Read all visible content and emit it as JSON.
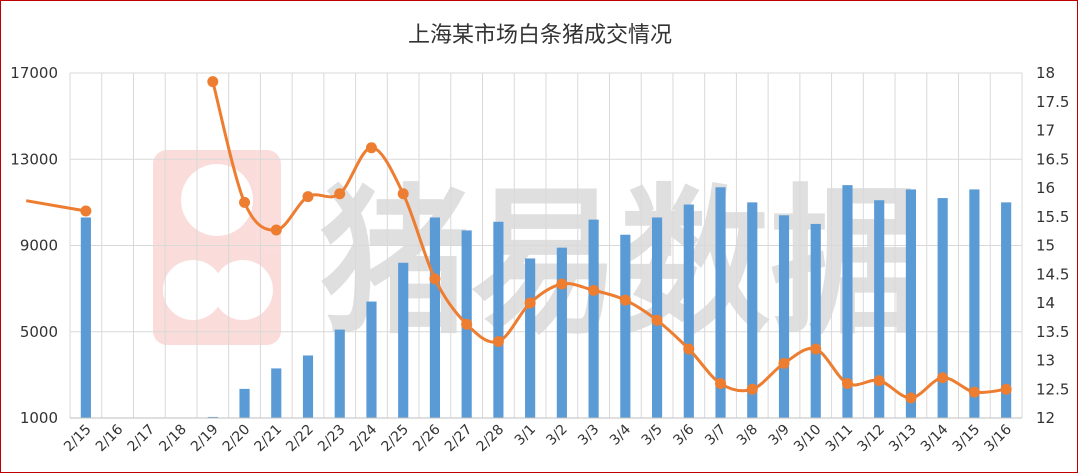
{
  "chart_data": {
    "type": "bar+line",
    "title": "上海某市场白条猪成交情况",
    "watermark": "猪易数据",
    "categories": [
      "2/15",
      "2/16",
      "2/17",
      "2/18",
      "2/19",
      "2/20",
      "2/21",
      "2/22",
      "2/23",
      "2/24",
      "2/25",
      "2/26",
      "2/27",
      "2/28",
      "3/1",
      "3/2",
      "3/3",
      "3/4",
      "3/5",
      "3/6",
      "3/7",
      "3/8",
      "3/9",
      "3/10",
      "3/11",
      "3/12",
      "3/13",
      "3/14",
      "3/15",
      "3/16"
    ],
    "series": [
      {
        "chart_type": "bar",
        "axis": "left",
        "color": "#5b9bd5",
        "values": [
          10300,
          null,
          null,
          null,
          1050,
          2350,
          3300,
          3900,
          5100,
          6400,
          8200,
          10300,
          9700,
          10100,
          8400,
          8900,
          10200,
          9500,
          10300,
          10900,
          11700,
          11000,
          10400,
          10000,
          11800,
          11100,
          11600,
          11200,
          11600,
          11000
        ]
      },
      {
        "chart_type": "line",
        "axis": "right",
        "color": "#ed7d31",
        "values": [
          15.6,
          null,
          null,
          null,
          17.85,
          15.75,
          15.27,
          15.85,
          15.9,
          16.7,
          15.9,
          14.42,
          13.63,
          13.33,
          14.0,
          14.33,
          14.22,
          14.05,
          13.7,
          13.2,
          12.6,
          12.5,
          12.95,
          13.2,
          12.6,
          12.65,
          12.35,
          12.7,
          12.45,
          12.5
        ]
      }
    ],
    "y_left": {
      "min": 1000,
      "max": 17000,
      "ticks": [
        1000,
        5000,
        9000,
        13000,
        17000
      ]
    },
    "y_right": {
      "min": 12,
      "max": 18,
      "ticks": [
        "12",
        "12.5",
        "13",
        "13.5",
        "14",
        "14.5",
        "15",
        "15.5",
        "16",
        "16.5",
        "17",
        "17.5",
        "18"
      ]
    },
    "grid": "vertical+horizontal",
    "legend": "none"
  }
}
